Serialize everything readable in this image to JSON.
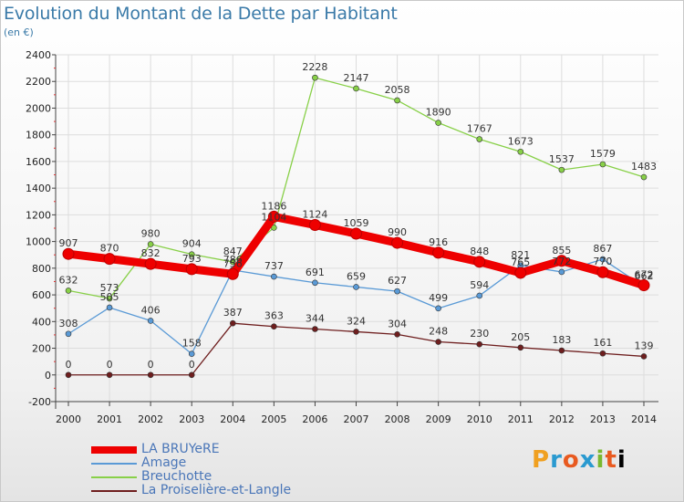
{
  "header": {
    "title": "Evolution du Montant de la Dette par Habitant",
    "subtitle": "(en €)"
  },
  "logo": {
    "text": "Proxiti"
  },
  "chart_data": {
    "type": "line",
    "x": [
      "2000",
      "2001",
      "2002",
      "2003",
      "2004",
      "2005",
      "2006",
      "2007",
      "2008",
      "2009",
      "2010",
      "2011",
      "2012",
      "2013",
      "2014"
    ],
    "ylim": [
      -200,
      2400
    ],
    "yticks": [
      -200,
      0,
      200,
      400,
      600,
      800,
      1000,
      1200,
      1400,
      1600,
      1800,
      2000,
      2200,
      2400
    ],
    "grid": true,
    "legend_position": "bottom-left",
    "series": [
      {
        "name": "LA BRUYeRE",
        "color": "#ee0000",
        "values": [
          907,
          870,
          832,
          793,
          756,
          1186,
          1124,
          1059,
          990,
          916,
          848,
          765,
          855,
          770,
          672
        ]
      },
      {
        "name": "Amage",
        "color": "#5a9ad6",
        "values": [
          308,
          505,
          406,
          158,
          786,
          737,
          691,
          659,
          627,
          499,
          594,
          821,
          772,
          867,
          662
        ]
      },
      {
        "name": "Breuchotte",
        "color": "#88d048",
        "values": [
          632,
          573,
          980,
          904,
          847,
          1104,
          2228,
          2147,
          2058,
          1890,
          1767,
          1673,
          1537,
          1579,
          1483
        ]
      },
      {
        "name": "La Proiselière-et-Langle",
        "color": "#6e1e1e",
        "values": [
          0,
          0,
          0,
          0,
          387,
          363,
          344,
          324,
          304,
          248,
          230,
          205,
          183,
          161,
          139
        ]
      }
    ]
  }
}
